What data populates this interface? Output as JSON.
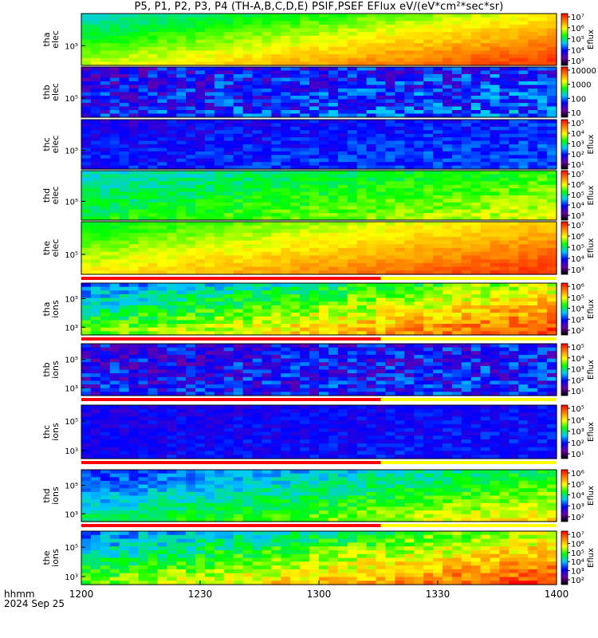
{
  "title": "P5, P1, P2, P3, P4 (TH-A,B,C,D,E) PSIF,PSEF EFlux eV/(eV*cm²*sec*sr)",
  "chart_data": {
    "type": "heatmap",
    "colormap": [
      "#000000",
      "#6a00a8",
      "#0000ff",
      "#00c8ff",
      "#00ff00",
      "#ffff00",
      "#ff8000",
      "#ff0000"
    ],
    "x_axis": {
      "ticks": [
        "1200",
        "1230",
        "1300",
        "1330",
        "1400"
      ],
      "label": "hhmm",
      "date": "2024 Sep 25"
    },
    "panels": [
      {
        "id": "tha-elec",
        "ylabel": [
          "tha",
          "elec"
        ],
        "yticks": [
          "10⁵"
        ],
        "colorbar": {
          "ticks": [
            "10⁷",
            "10⁶",
            "10⁵",
            "10⁴",
            "10³"
          ],
          "label": "Eflux"
        },
        "min_level": 0.45,
        "max_level": 0.95,
        "noise": 0.03,
        "overflow_bar": false
      },
      {
        "id": "thb-elec",
        "ylabel": [
          "thb",
          "elec"
        ],
        "yticks": [
          "10⁵"
        ],
        "colorbar": {
          "ticks": [
            "10000",
            "1000",
            "100",
            "10"
          ],
          "label": ""
        },
        "min_level": 0.25,
        "max_level": 0.35,
        "noise": 0.12,
        "overflow_bar": false
      },
      {
        "id": "thc-elec",
        "ylabel": [
          "thc",
          "elec"
        ],
        "yticks": [
          "10⁵"
        ],
        "colorbar": {
          "ticks": [
            "10⁵",
            "10⁴",
            "10³",
            "10²",
            "10¹"
          ],
          "label": "Eflux"
        },
        "min_level": 0.25,
        "max_level": 0.35,
        "noise": 0.06,
        "overflow_bar": false
      },
      {
        "id": "thd-elec",
        "ylabel": [
          "thd",
          "elec"
        ],
        "yticks": [
          "10⁵"
        ],
        "colorbar": {
          "ticks": [
            "10⁷",
            "10⁶",
            "10⁵",
            "10⁴",
            "10³"
          ],
          "label": "Eflux"
        },
        "min_level": 0.45,
        "max_level": 0.7,
        "noise": 0.05,
        "overflow_bar": false
      },
      {
        "id": "the-elec",
        "ylabel": [
          "the",
          "elec"
        ],
        "yticks": [
          "10⁵"
        ],
        "colorbar": {
          "ticks": [
            "10⁷",
            "10⁶",
            "10⁵",
            "10⁴",
            "10³"
          ],
          "label": "Eflux"
        },
        "min_level": 0.55,
        "max_level": 0.95,
        "noise": 0.03,
        "overflow_bar": true
      },
      {
        "id": "tha-ions",
        "ylabel": [
          "tha",
          "ions"
        ],
        "yticks": [
          "10⁵",
          "10³"
        ],
        "colorbar": {
          "ticks": [
            "10⁶",
            "10⁵",
            "10⁴",
            "10³",
            "10²"
          ],
          "label": "Eflux"
        },
        "min_level": 0.35,
        "max_level": 0.95,
        "noise": 0.08,
        "overflow_bar": true
      },
      {
        "id": "thb-ions",
        "ylabel": [
          "thb",
          "ions"
        ],
        "yticks": [
          "10⁵",
          "10³"
        ],
        "colorbar": {
          "ticks": [
            "10⁵",
            "10⁴",
            "10³",
            "10²",
            "10¹"
          ],
          "label": "Eflux"
        },
        "min_level": 0.25,
        "max_level": 0.3,
        "noise": 0.12,
        "overflow_bar": true
      },
      {
        "id": "thc-ions",
        "ylabel": [
          "thc",
          "ions"
        ],
        "yticks": [
          "10⁵",
          "10³"
        ],
        "colorbar": {
          "ticks": [
            "10⁵",
            "10⁴",
            "10³",
            "10²",
            "10¹"
          ],
          "label": "Eflux"
        },
        "min_level": 0.25,
        "max_level": 0.3,
        "noise": 0.05,
        "overflow_bar": true
      },
      {
        "id": "thd-ions",
        "ylabel": [
          "thd",
          "ions"
        ],
        "yticks": [
          "10⁵",
          "10³"
        ],
        "colorbar": {
          "ticks": [
            "10⁶",
            "10⁵",
            "10⁴",
            "10³",
            "10²"
          ],
          "label": "Eflux"
        },
        "min_level": 0.3,
        "max_level": 0.75,
        "noise": 0.06,
        "overflow_bar": true
      },
      {
        "id": "the-ions",
        "ylabel": [
          "the",
          "ions"
        ],
        "yticks": [
          "10⁵",
          "10³"
        ],
        "colorbar": {
          "ticks": [
            "10⁷",
            "10⁶",
            "10⁵",
            "10⁴",
            "10³",
            "10²"
          ],
          "label": "Eflux"
        },
        "min_level": 0.35,
        "max_level": 0.95,
        "noise": 0.08,
        "overflow_bar": false
      }
    ]
  }
}
